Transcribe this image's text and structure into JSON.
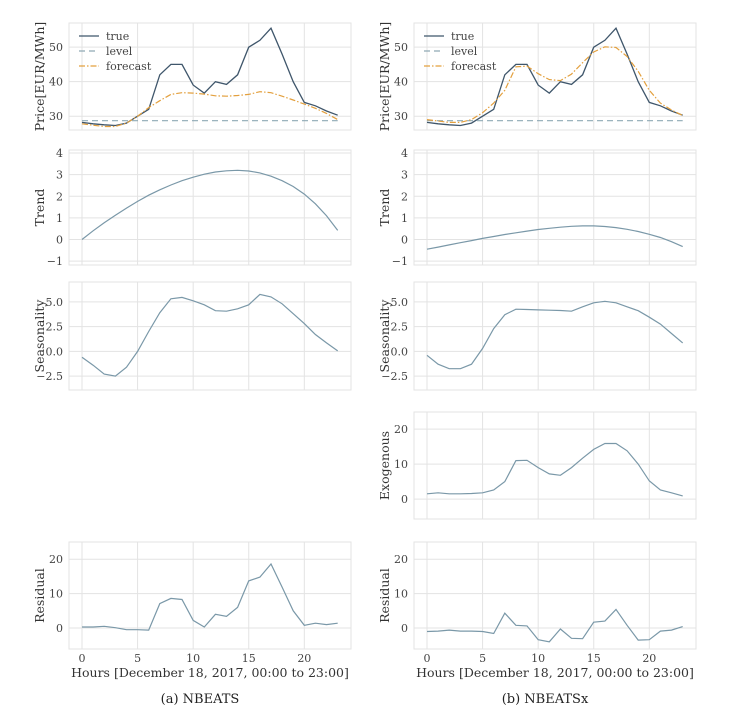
{
  "colors": {
    "true": "#3f566b",
    "level": "#8fa9b5",
    "forecast": "#e3a03e",
    "component": "#7a98a8",
    "grid": "#e3e3e3"
  },
  "xlabel": "Hours [December 18, 2017, 00:00 to 23:00]",
  "chart_data": [
    {
      "caption": "(a) NBEATS",
      "x": [
        0,
        1,
        2,
        3,
        4,
        5,
        6,
        7,
        8,
        9,
        10,
        11,
        12,
        13,
        14,
        15,
        16,
        17,
        18,
        19,
        20,
        21,
        22,
        23
      ],
      "xticks": [
        0,
        5,
        10,
        15,
        20
      ],
      "panels": [
        {
          "type": "line",
          "ylabel": "Price[EUR/MWh]",
          "ylim": [
            26,
            57
          ],
          "yticks": [
            30,
            40,
            50
          ],
          "ytick_labels": [
            "30",
            "40",
            "50"
          ],
          "legend": "top-left",
          "series": [
            {
              "name": "true",
              "style": "solid",
              "values": [
                28.2,
                27.8,
                27.5,
                27.3,
                28,
                30,
                32,
                42,
                45,
                45,
                39,
                36.7,
                40,
                39.2,
                42,
                50,
                52,
                55.5,
                48,
                40,
                34,
                33,
                31.5,
                30.3
              ]
            },
            {
              "name": "level",
              "style": "dashed",
              "values": [
                28.7,
                28.7,
                28.7,
                28.7,
                28.7,
                28.7,
                28.7,
                28.7,
                28.7,
                28.7,
                28.7,
                28.7,
                28.7,
                28.7,
                28.7,
                28.7,
                28.7,
                28.7,
                28.7,
                28.7,
                28.7,
                28.7,
                28.7,
                28.7
              ]
            },
            {
              "name": "forecast",
              "style": "dashdot",
              "values": [
                27.8,
                27.4,
                27,
                27,
                28,
                30,
                32.5,
                34.5,
                36.3,
                36.8,
                36.7,
                36.4,
                35.9,
                35.8,
                36,
                36.3,
                37.1,
                36.8,
                35.8,
                34.7,
                33.5,
                32.3,
                30.8,
                29
              ]
            }
          ]
        },
        {
          "type": "line",
          "ylabel": "Trend",
          "ylim": [
            -1.18,
            4.14
          ],
          "yticks": [
            -1,
            0,
            1,
            2,
            3,
            4
          ],
          "ytick_labels": [
            "−1",
            "0",
            "1",
            "2",
            "3",
            "4"
          ],
          "series": [
            {
              "values": [
                0,
                0.4,
                0.77,
                1.12,
                1.45,
                1.76,
                2.05,
                2.3,
                2.52,
                2.72,
                2.88,
                3.02,
                3.12,
                3.18,
                3.2,
                3.17,
                3.08,
                2.93,
                2.72,
                2.45,
                2.1,
                1.65,
                1.1,
                0.42
              ]
            }
          ]
        },
        {
          "type": "line",
          "ylabel": "Seasonality",
          "ylim": [
            -3.9,
            7.0
          ],
          "yticks": [
            -2.5,
            0,
            2.5,
            5
          ],
          "ytick_labels": [
            "−2.5",
            "0.0",
            "2.5",
            "5.0"
          ],
          "series": [
            {
              "values": [
                -0.6,
                -1.4,
                -2.3,
                -2.5,
                -1.6,
                0,
                2,
                3.9,
                5.3,
                5.45,
                5.1,
                4.7,
                4.1,
                4.05,
                4.3,
                4.7,
                5.75,
                5.5,
                4.8,
                3.8,
                2.8,
                1.7,
                0.85,
                0.05
              ]
            }
          ]
        },
        null,
        {
          "type": "line",
          "ylabel": "Residual",
          "ylim": [
            -6.1,
            25
          ],
          "yticks": [
            0,
            10,
            20
          ],
          "ytick_labels": [
            "0",
            "10",
            "20"
          ],
          "series": [
            {
              "values": [
                0.3,
                0.3,
                0.5,
                0.1,
                -0.5,
                -0.5,
                -0.6,
                7.1,
                8.6,
                8.3,
                2.2,
                0.3,
                4,
                3.4,
                6,
                13.7,
                14.8,
                18.6,
                11.9,
                5,
                0.8,
                1.4,
                1,
                1.4
              ]
            }
          ]
        }
      ]
    },
    {
      "caption": "(b) NBEATSx",
      "x": [
        0,
        1,
        2,
        3,
        4,
        5,
        6,
        7,
        8,
        9,
        10,
        11,
        12,
        13,
        14,
        15,
        16,
        17,
        18,
        19,
        20,
        21,
        22,
        23
      ],
      "xticks": [
        0,
        5,
        10,
        15,
        20
      ],
      "panels": [
        {
          "type": "line",
          "ylabel": "Price[EUR/MWh]",
          "ylim": [
            26,
            57
          ],
          "yticks": [
            30,
            40,
            50
          ],
          "ytick_labels": [
            "30",
            "40",
            "50"
          ],
          "legend": "top-left",
          "series": [
            {
              "name": "true",
              "style": "solid",
              "values": [
                28.2,
                27.8,
                27.5,
                27.3,
                28,
                30,
                32,
                42,
                45,
                45,
                39,
                36.7,
                40,
                39.2,
                42,
                50,
                52,
                55.5,
                48,
                40,
                34,
                33,
                31.5,
                30.3
              ]
            },
            {
              "name": "level",
              "style": "dashed",
              "values": [
                28.7,
                28.7,
                28.7,
                28.7,
                28.7,
                28.7,
                28.7,
                28.7,
                28.7,
                28.7,
                28.7,
                28.7,
                28.7,
                28.7,
                28.7,
                28.7,
                28.7,
                28.7,
                28.7,
                28.7,
                28.7,
                28.7,
                28.7,
                28.7
              ]
            },
            {
              "name": "forecast",
              "style": "dashdot",
              "values": [
                29,
                28.6,
                28.2,
                28.2,
                29,
                31,
                33.8,
                37.5,
                44.3,
                44.5,
                42.3,
                40.6,
                40.3,
                42.2,
                45.5,
                48.6,
                50.1,
                49.9,
                47.3,
                43,
                37.5,
                33.8,
                31.8,
                30.2
              ]
            }
          ]
        },
        {
          "type": "line",
          "ylabel": "Trend",
          "ylim": [
            -1.18,
            4.14
          ],
          "yticks": [
            -1,
            0,
            1,
            2,
            3,
            4
          ],
          "ytick_labels": [
            "−1",
            "0",
            "1",
            "2",
            "3",
            "4"
          ],
          "series": [
            {
              "values": [
                -0.45,
                -0.35,
                -0.25,
                -0.15,
                -0.05,
                0.05,
                0.14,
                0.23,
                0.31,
                0.39,
                0.46,
                0.52,
                0.57,
                0.61,
                0.63,
                0.63,
                0.6,
                0.55,
                0.47,
                0.37,
                0.24,
                0.09,
                -0.1,
                -0.33
              ]
            }
          ]
        },
        {
          "type": "line",
          "ylabel": "Seasonality",
          "ylim": [
            -3.9,
            7.0
          ],
          "yticks": [
            -2.5,
            0,
            2.5,
            5
          ],
          "ytick_labels": [
            "−2.5",
            "0.0",
            "2.5",
            "5.0"
          ],
          "series": [
            {
              "values": [
                -0.4,
                -1.3,
                -1.75,
                -1.75,
                -1.3,
                0.3,
                2.3,
                3.7,
                4.25,
                4.22,
                4.18,
                4.15,
                4.12,
                4.05,
                4.5,
                4.9,
                5.05,
                4.9,
                4.5,
                4.1,
                3.45,
                2.75,
                1.8,
                0.85
              ]
            }
          ]
        },
        {
          "type": "line",
          "ylabel": "Exogenous",
          "ylim": [
            -5.7,
            24.9
          ],
          "yticks": [
            0,
            10,
            20
          ],
          "ytick_labels": [
            "0",
            "10",
            "20"
          ],
          "series": [
            {
              "values": [
                1.5,
                1.8,
                1.5,
                1.5,
                1.6,
                1.8,
                2.6,
                5,
                11,
                11.1,
                9,
                7.2,
                6.8,
                9,
                11.7,
                14.2,
                15.9,
                15.9,
                13.8,
                10,
                5.2,
                2.6,
                1.8,
                0.9
              ]
            }
          ]
        },
        {
          "type": "line",
          "ylabel": "Residual",
          "ylim": [
            -6.1,
            25
          ],
          "yticks": [
            0,
            10,
            20
          ],
          "ytick_labels": [
            "0",
            "10",
            "20"
          ],
          "series": [
            {
              "values": [
                -1,
                -0.9,
                -0.6,
                -0.9,
                -0.9,
                -1,
                -1.6,
                4.3,
                0.8,
                0.6,
                -3.4,
                -4,
                -0.3,
                -3,
                -3.1,
                1.7,
                2,
                5.4,
                0.8,
                -3.5,
                -3.4,
                -0.9,
                -0.6,
                0.4
              ]
            }
          ]
        }
      ]
    }
  ]
}
